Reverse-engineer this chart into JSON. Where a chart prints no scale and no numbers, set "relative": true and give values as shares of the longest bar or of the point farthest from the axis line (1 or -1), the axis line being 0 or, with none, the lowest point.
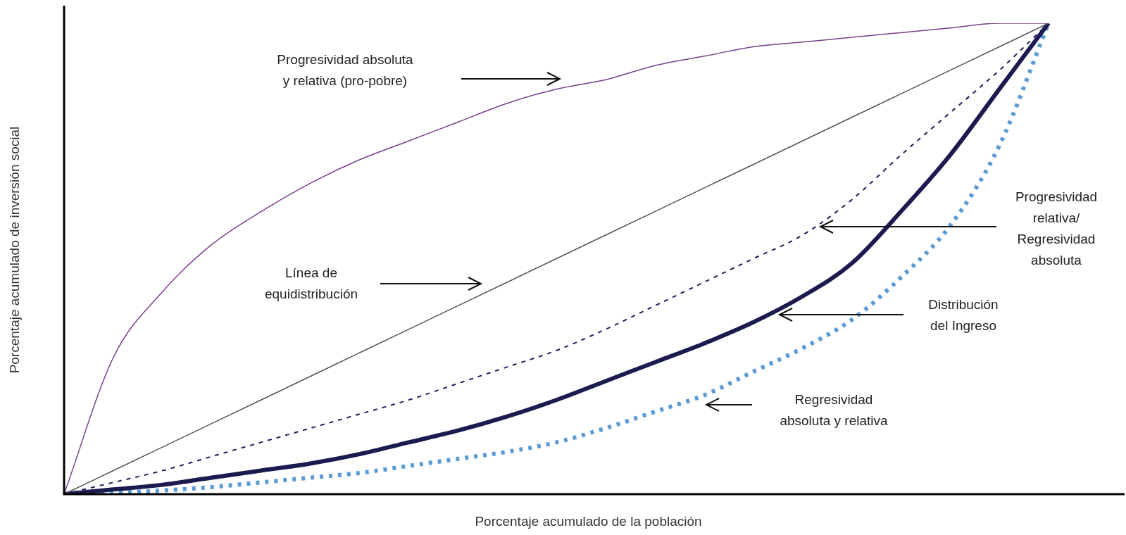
{
  "chart_data": {
    "type": "line",
    "relative": true,
    "xlabel": "Porcentaje acumulado de la población",
    "ylabel": "Porcentaje acumulado de inversión social",
    "legend": false,
    "marker": "none",
    "categories": [
      null,
      null,
      null,
      null,
      null,
      null,
      null,
      null,
      null,
      null,
      null,
      null,
      null,
      null,
      null,
      null,
      null,
      null,
      null,
      null,
      null
    ],
    "series": [
      {
        "color": "#555555",
        "line_style": "solid",
        "values": [
          0,
          0.05,
          0.1,
          0.15,
          0.2,
          0.25,
          0.3,
          0.35,
          0.4,
          0.45,
          0.5,
          0.55,
          0.6,
          0.65,
          0.7,
          0.75,
          0.8,
          0.85,
          0.9,
          0.95,
          1
        ]
      },
      {
        "color": "#7b3f8c",
        "line_style": "solid",
        "values": [
          0,
          0.29,
          0.43,
          0.53,
          0.6,
          0.66,
          0.71,
          0.75,
          0.79,
          0.83,
          0.86,
          0.88,
          0.91,
          0.93,
          0.95,
          0.96,
          0.97,
          0.98,
          0.99,
          1,
          1
        ]
      },
      {
        "color": "#1f1f5a",
        "line_style": "dashed",
        "values": [
          0,
          0.025,
          0.05,
          0.08,
          0.11,
          0.14,
          0.17,
          0.2,
          0.235,
          0.27,
          0.305,
          0.35,
          0.4,
          0.45,
          0.5,
          0.55,
          0.625,
          0.72,
          0.81,
          0.9,
          1
        ]
      },
      {
        "color": "#1b1b50",
        "line_style": "solid",
        "values": [
          0,
          0.01,
          0.02,
          0.035,
          0.05,
          0.065,
          0.085,
          0.11,
          0.135,
          0.165,
          0.2,
          0.24,
          0.28,
          0.32,
          0.365,
          0.42,
          0.49,
          0.6,
          0.72,
          0.86,
          1
        ]
      },
      {
        "color": "#5b9bd5",
        "line_style": "dotted",
        "values": [
          0,
          0.003,
          0.008,
          0.015,
          0.025,
          0.035,
          0.045,
          0.06,
          0.075,
          0.09,
          0.11,
          0.14,
          0.175,
          0.21,
          0.26,
          0.31,
          0.37,
          0.46,
          0.57,
          0.74,
          1
        ]
      }
    ],
    "annotations": [
      "Progresividad absoluta\ny relativa (pro-pobre)",
      "Línea de\nequidistribución",
      "Progresividad\nrelativa/\nRegresividad\nabsoluta",
      "Distribución\ndel Ingreso",
      "Regresividad\nabsoluta y relativa"
    ]
  }
}
